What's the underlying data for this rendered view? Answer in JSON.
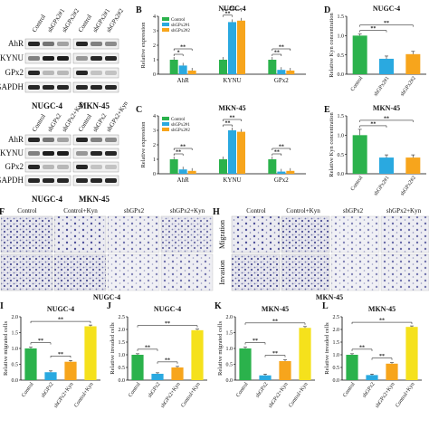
{
  "panel_letters": {
    "B": "B",
    "C": "C",
    "D": "D",
    "E": "E",
    "F": "F",
    "H": "H",
    "I": "I",
    "J": "J",
    "K": "K",
    "L": "L"
  },
  "blots": {
    "top": {
      "lanes": [
        "Control",
        "shGPx2#1",
        "shGPx2#2",
        "Control",
        "shGPx2#1",
        "shGPx2#2"
      ],
      "rows": [
        "AhR",
        "KYNU",
        "GPx2",
        "GAPDH"
      ],
      "groups": [
        "NUGC-4",
        "MKN-45"
      ]
    },
    "bottom": {
      "lanes": [
        "Control",
        "shGPx2",
        "shGPx2+Kyn",
        "Control",
        "shGPx2",
        "shGPx2+Kyn"
      ],
      "rows": [
        "AhR",
        "KYNU",
        "GPx2",
        "GAPDH"
      ],
      "groups": [
        "NUGC-4",
        "MKN-45"
      ]
    }
  },
  "chart_data": [
    {
      "id": "B",
      "type": "bar",
      "title": "NUGC-4",
      "ylabel": "Relative expression",
      "ylim": [
        0,
        4
      ],
      "yticks": [
        0,
        1,
        2,
        3,
        4
      ],
      "categories": [
        "AhR",
        "KYNU",
        "GPx2"
      ],
      "series": [
        {
          "name": "Control",
          "values": [
            1.0,
            1.0,
            1.0
          ]
        },
        {
          "name": "shGPx2#1",
          "values": [
            0.6,
            3.6,
            0.3
          ]
        },
        {
          "name": "shGPx2#2",
          "values": [
            0.25,
            3.7,
            0.25
          ]
        }
      ],
      "sig": [
        "*",
        "**",
        "**",
        "**",
        "**",
        "**"
      ],
      "colors": [
        "#2bb24c",
        "#2aa9e0",
        "#f7a51c"
      ]
    },
    {
      "id": "C",
      "type": "bar",
      "title": "MKN-45",
      "ylabel": "Relative expression",
      "ylim": [
        0,
        4
      ],
      "yticks": [
        0,
        1,
        2,
        3,
        4
      ],
      "categories": [
        "AhR",
        "KYNU",
        "GPx2"
      ],
      "series": [
        {
          "name": "Control",
          "values": [
            1.0,
            1.0,
            1.0
          ]
        },
        {
          "name": "shGPx2#1",
          "values": [
            0.3,
            3.0,
            0.15
          ]
        },
        {
          "name": "shGPx2#2",
          "values": [
            0.2,
            2.9,
            0.2
          ]
        }
      ],
      "sig": [
        "**",
        "**",
        "**",
        "**",
        "**",
        "**"
      ],
      "colors": [
        "#2bb24c",
        "#2aa9e0",
        "#f7a51c"
      ]
    },
    {
      "id": "D",
      "type": "bar",
      "title": "NUGC-4",
      "ylabel": "Relative Kyn concentration",
      "ylim": [
        0,
        1.5
      ],
      "yticks": [
        "0.0",
        "0.5",
        "1.0",
        "1.5"
      ],
      "categories": [
        "Control",
        "shGPx2#1",
        "shGPx2#2"
      ],
      "values": [
        1.0,
        0.4,
        0.52
      ],
      "errors": [
        0.04,
        0.07,
        0.07
      ],
      "sig": [
        "**",
        "**"
      ],
      "colors": [
        "#2bb24c",
        "#2aa9e0",
        "#f7a51c"
      ]
    },
    {
      "id": "E",
      "type": "bar",
      "title": "MKN-45",
      "ylabel": "Relative Kyn concentration",
      "ylim": [
        0,
        1.5
      ],
      "yticks": [
        "0.0",
        "0.5",
        "1.0",
        "1.5"
      ],
      "categories": [
        "Control",
        "shGPx2#1",
        "shGPx2#2"
      ],
      "values": [
        1.0,
        0.42,
        0.42
      ],
      "errors": [
        0.15,
        0.07,
        0.07
      ],
      "sig": [
        "**",
        "**"
      ],
      "colors": [
        "#2bb24c",
        "#2aa9e0",
        "#f7a51c"
      ]
    },
    {
      "id": "I",
      "type": "bar",
      "title": "NUGC-4",
      "ylabel": "Relative migrated cells",
      "ylim": [
        0,
        2
      ],
      "yticks": [
        "0.0",
        "0.5",
        "1.0",
        "1.5",
        "2.0"
      ],
      "categories": [
        "Control",
        "shGPx2",
        "shGPx2+Kyn",
        "Control+Kyn"
      ],
      "values": [
        1.0,
        0.25,
        0.58,
        1.7
      ],
      "sig": [
        "**",
        "**",
        "**"
      ],
      "colors": [
        "#2bb24c",
        "#2aa9e0",
        "#f7a51c",
        "#f5e11c"
      ]
    },
    {
      "id": "J",
      "type": "bar",
      "title": "NUGC-4",
      "ylabel": "Relative invaded cells",
      "ylim": [
        0,
        2.5
      ],
      "yticks": [
        "0.0",
        "0.5",
        "1.0",
        "1.5",
        "2.0",
        "2.5"
      ],
      "categories": [
        "Control",
        "shGPx2",
        "shGPx2+Kyn",
        "Control+Kyn"
      ],
      "values": [
        1.0,
        0.25,
        0.5,
        1.97
      ],
      "sig": [
        "**",
        "**",
        "**"
      ],
      "colors": [
        "#2bb24c",
        "#2aa9e0",
        "#f7a51c",
        "#f5e11c"
      ]
    },
    {
      "id": "K",
      "type": "bar",
      "title": "MKN-45",
      "ylabel": "Relative migrated cells",
      "ylim": [
        0,
        2
      ],
      "yticks": [
        "0.0",
        "0.5",
        "1.0",
        "1.5",
        "2.0"
      ],
      "categories": [
        "Control",
        "shGPx2",
        "shGPx2+Kyn",
        "Control+Kyn"
      ],
      "values": [
        1.0,
        0.15,
        0.6,
        1.65
      ],
      "sig": [
        "**",
        "**",
        "**"
      ],
      "colors": [
        "#2bb24c",
        "#2aa9e0",
        "#f7a51c",
        "#f5e11c"
      ]
    },
    {
      "id": "L",
      "type": "bar",
      "title": "MKN-45",
      "ylabel": "Relative invaded cells",
      "ylim": [
        0,
        2.5
      ],
      "yticks": [
        "0.0",
        "0.5",
        "1.0",
        "1.5",
        "2.0",
        "2.5"
      ],
      "categories": [
        "Control",
        "shGPx2",
        "shGPx2+Kyn",
        "Control+Kyn"
      ],
      "values": [
        1.0,
        0.2,
        0.65,
        2.1
      ],
      "sig": [
        "**",
        "**",
        "**"
      ],
      "colors": [
        "#2bb24c",
        "#2aa9e0",
        "#f7a51c",
        "#f5e11c"
      ]
    }
  ],
  "micrographs": {
    "nugc4": {
      "columns": [
        "Control",
        "Control+Kyn",
        "shGPx2",
        "shGPx2+Kyn"
      ],
      "caption": "NUGC-4"
    },
    "mkn45": {
      "columns": [
        "Control",
        "Control+Kyn",
        "shGPx2",
        "shGPx2+Kyn"
      ],
      "rows": [
        "Migration",
        "Invasion"
      ],
      "caption": "MKN-45"
    }
  }
}
